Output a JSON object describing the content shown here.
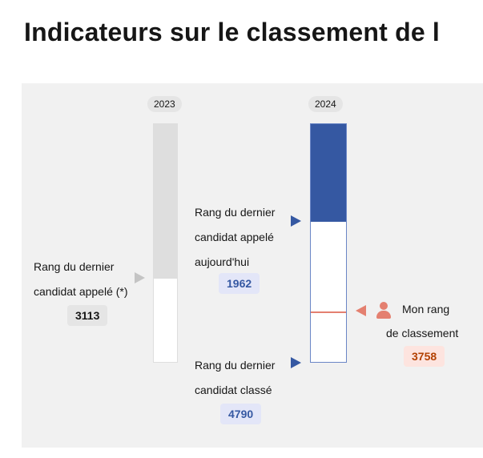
{
  "page": {
    "title": "Indicateurs sur le classement de l"
  },
  "years": {
    "y2023": {
      "label": "2023",
      "last_called_fraction": 0.65
    },
    "y2024": {
      "label": "2024",
      "called_today_fraction": 0.41,
      "my_rank_fraction": 0.787
    }
  },
  "indicators": {
    "last_called_2023": {
      "line1": "Rang du dernier",
      "line2": "candidat appelé (*)",
      "value": "3113"
    },
    "last_called_today": {
      "line1": "Rang du dernier",
      "line2": "candidat appelé",
      "line3": "aujourd'hui",
      "value": "1962"
    },
    "last_ranked": {
      "line1": "Rang du dernier",
      "line2": "candidat classé",
      "value": "4790"
    },
    "my_rank": {
      "line1": "Mon rang",
      "line2": "de classement",
      "value": "3758",
      "icon": "person-icon"
    }
  },
  "colors": {
    "bar_2023_fill": "#dedede",
    "bar_2024_fill": "#3558a2",
    "bar_2024_border": "#6a86c6",
    "my_rank": "#e48070",
    "badge_grey_bg": "#e5e5e5",
    "badge_blue_bg": "#e3e6f8",
    "badge_blue_text": "#3558a2",
    "badge_red_bg": "#fde4df",
    "badge_red_text": "#b34000"
  }
}
